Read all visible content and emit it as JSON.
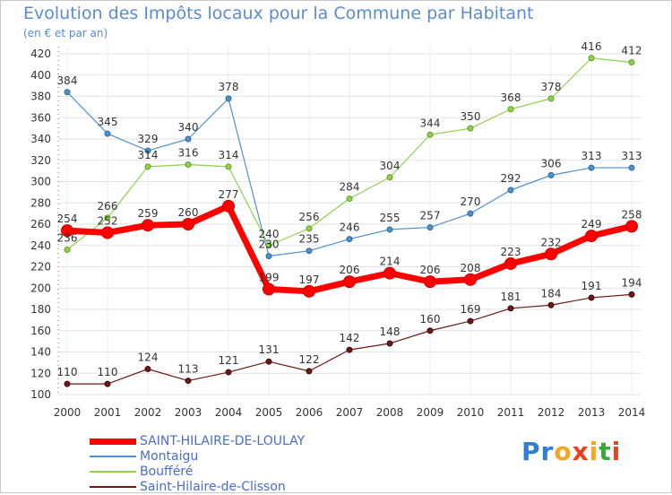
{
  "title": "Evolution des Impôts locaux pour la Commune par Habitant",
  "subtitle": "(en € et par an)",
  "logo_text": "Proxiti",
  "chart_data": {
    "type": "line",
    "title": "Evolution des Impôts locaux pour la Commune par Habitant",
    "subtitle": "(en € et par an)",
    "categories": [
      "2000",
      "2001",
      "2002",
      "2003",
      "2004",
      "2005",
      "2006",
      "2007",
      "2008",
      "2009",
      "2010",
      "2011",
      "2012",
      "2013",
      "2014"
    ],
    "ylim": [
      100,
      420
    ],
    "yticks": [
      "100",
      "120",
      "140",
      "160",
      "180",
      "200",
      "220",
      "240",
      "260",
      "280",
      "300",
      "320",
      "340",
      "360",
      "380",
      "400",
      "420"
    ],
    "grid": true,
    "legend_position": "bottom-left",
    "series": [
      {
        "name": "SAINT-HILAIRE-DE-LOULAY",
        "color": "#ff0000",
        "values": [
          254,
          252,
          259,
          260,
          277,
          199,
          197,
          206,
          214,
          206,
          208,
          223,
          232,
          249,
          258
        ]
      },
      {
        "name": "Montaigu",
        "color": "#4f91c9",
        "values": [
          384,
          345,
          329,
          340,
          378,
          230,
          235,
          246,
          255,
          257,
          270,
          292,
          306,
          313,
          313
        ]
      },
      {
        "name": "Boufféré",
        "color": "#8fd14f",
        "values": [
          236,
          266,
          314,
          316,
          314,
          240,
          256,
          284,
          304,
          344,
          350,
          368,
          378,
          416,
          412
        ]
      },
      {
        "name": "Saint-Hilaire-de-Clisson",
        "color": "#6b1a1a",
        "values": [
          110,
          110,
          124,
          113,
          121,
          131,
          122,
          142,
          148,
          160,
          169,
          181,
          184,
          191,
          194
        ]
      }
    ]
  }
}
